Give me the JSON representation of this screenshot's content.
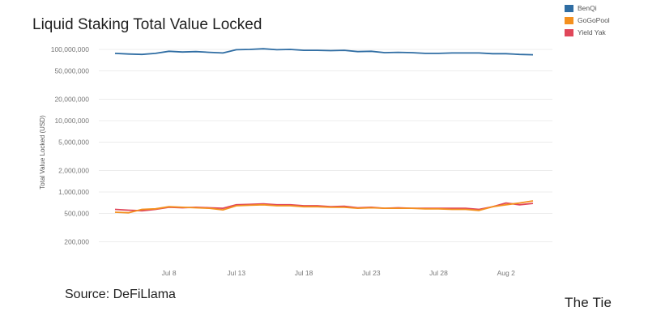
{
  "chart_data": {
    "type": "line",
    "title": "Liquid Staking Total Value Locked",
    "ylabel": "Total Value Locked (USD)",
    "xlabel": "",
    "yscale": "log",
    "ylim": [
      120000,
      120000000
    ],
    "grid": true,
    "legend_position": "top-right",
    "x": [
      "Jul 4",
      "Jul 5",
      "Jul 6",
      "Jul 7",
      "Jul 8",
      "Jul 9",
      "Jul 10",
      "Jul 11",
      "Jul 12",
      "Jul 13",
      "Jul 14",
      "Jul 15",
      "Jul 16",
      "Jul 17",
      "Jul 18",
      "Jul 19",
      "Jul 20",
      "Jul 21",
      "Jul 22",
      "Jul 23",
      "Jul 24",
      "Jul 25",
      "Jul 26",
      "Jul 27",
      "Jul 28",
      "Jul 29",
      "Jul 30",
      "Jul 31",
      "Aug 1",
      "Aug 2",
      "Aug 3",
      "Aug 4"
    ],
    "x_tick_labels": [
      "Jul 8",
      "Jul 13",
      "Jul 18",
      "Jul 23",
      "Jul 28",
      "Aug 2"
    ],
    "y_ticks": [
      {
        "value": 100000000,
        "label": "100,000,000"
      },
      {
        "value": 50000000,
        "label": "50,000,000"
      },
      {
        "value": 20000000,
        "label": "20,000,000"
      },
      {
        "value": 10000000,
        "label": "10,000,000"
      },
      {
        "value": 5000000,
        "label": "5,000,000"
      },
      {
        "value": 2000000,
        "label": "2,000,000"
      },
      {
        "value": 1000000,
        "label": "1,000,000"
      },
      {
        "value": 500000,
        "label": "500,000"
      },
      {
        "value": 200000,
        "label": "200,000"
      }
    ],
    "series": [
      {
        "name": "BenQi",
        "color": "#2f6da3",
        "values": [
          88000000,
          86000000,
          85000000,
          88000000,
          94000000,
          92000000,
          93000000,
          91000000,
          89000000,
          99000000,
          100000000,
          102000000,
          99000000,
          100000000,
          97000000,
          97000000,
          96000000,
          97000000,
          93000000,
          94000000,
          90000000,
          91000000,
          90000000,
          88000000,
          88000000,
          89000000,
          89000000,
          89000000,
          87000000,
          87000000,
          85000000,
          84000000
        ]
      },
      {
        "name": "GoGoPool",
        "color": "#f4901e",
        "values": [
          520000,
          510000,
          570000,
          580000,
          620000,
          610000,
          600000,
          590000,
          560000,
          640000,
          650000,
          660000,
          640000,
          640000,
          620000,
          620000,
          610000,
          610000,
          590000,
          600000,
          590000,
          590000,
          590000,
          580000,
          580000,
          570000,
          570000,
          550000,
          620000,
          660000,
          700000,
          750000
        ]
      },
      {
        "name": "Yield Yak",
        "color": "#e0475a",
        "values": [
          570000,
          555000,
          545000,
          570000,
          610000,
          600000,
          610000,
          600000,
          590000,
          660000,
          670000,
          680000,
          660000,
          660000,
          640000,
          640000,
          620000,
          630000,
          600000,
          610000,
          590000,
          600000,
          590000,
          590000,
          590000,
          590000,
          590000,
          570000,
          620000,
          700000,
          660000,
          690000
        ]
      }
    ]
  },
  "source": "Source: DeFiLlama",
  "brand": "The Tie"
}
